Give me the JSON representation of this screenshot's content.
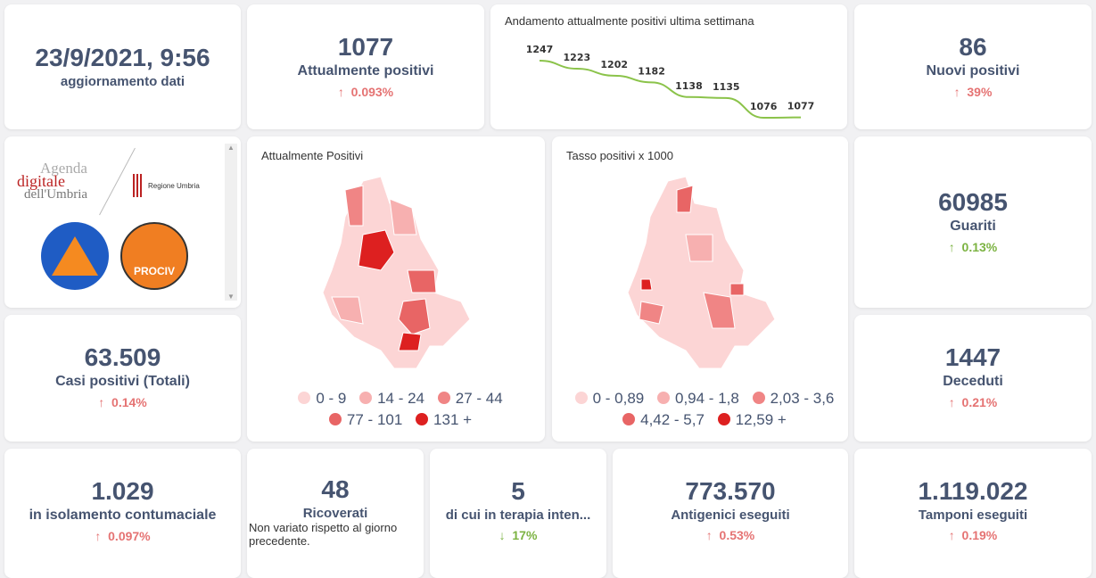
{
  "update": {
    "value": "23/9/2021, 9:56",
    "label": "aggiornamento dati"
  },
  "attualmente": {
    "value": "1077",
    "label": "Attualmente positivi",
    "pct": "0.093%",
    "arrow": "↑"
  },
  "nuovi": {
    "value": "86",
    "label": "Nuovi positivi",
    "pct": "39%",
    "arrow": "↑"
  },
  "guariti": {
    "value": "60985",
    "label": "Guariti",
    "pct": "0.13%",
    "arrow": "↑"
  },
  "casi": {
    "value": "63.509",
    "label": "Casi positivi (Totali)",
    "pct": "0.14%",
    "arrow": "↑"
  },
  "deceduti": {
    "value": "1447",
    "label": "Deceduti",
    "pct": "0.21%",
    "arrow": "↑"
  },
  "isolamento": {
    "value": "1.029",
    "label": "in isolamento contumaciale",
    "pct": "0.097%",
    "arrow": "↑"
  },
  "ricoverati": {
    "value": "48",
    "label": "Ricoverati",
    "note": "Non variato rispetto al giorno precedente."
  },
  "terapia": {
    "value": "5",
    "label": "di cui in terapia inten...",
    "pct": "17%",
    "arrow": "↓"
  },
  "antigenici": {
    "value": "773.570",
    "label": "Antigenici eseguiti",
    "pct": "0.53%",
    "arrow": "↑"
  },
  "tamponi": {
    "value": "1.119.022",
    "label": "Tamponi eseguiti",
    "pct": "0.19%",
    "arrow": "↑"
  },
  "logos": {
    "agenda": "Agenda digitale dell'Umbria",
    "regione": "Regione Umbria",
    "protezione": "Protezione Civile Regione Umbria",
    "anci": "ANCI UMBRIA PROCIV"
  },
  "map1": {
    "title": "Attualmente Positivi",
    "legend": [
      "0 - 9",
      "14 - 24",
      "27 - 44",
      "77 - 101",
      "131 +"
    ]
  },
  "map2": {
    "title": "Tasso positivi x 1000",
    "legend": [
      "0 - 0,89",
      "0,94 - 1,8",
      "2,03 - 3,6",
      "4,42 - 5,7",
      "12,59 +"
    ]
  },
  "colors": {
    "scale": [
      "#fcd5d5",
      "#f7b0b0",
      "#f08585",
      "#e86565",
      "#dd2020"
    ],
    "up": "#e57373",
    "down": "#7cb342",
    "line": "#8bc34a"
  },
  "chart_data": {
    "type": "line",
    "title": "Andamento attualmente positivi ultima settimana",
    "values": [
      1247,
      1223,
      1202,
      1182,
      1138,
      1135,
      1076,
      1077
    ],
    "data_labels": [
      "1247",
      "1223",
      "1202",
      "1182",
      "1138",
      "1135",
      "1076",
      "1077"
    ]
  }
}
